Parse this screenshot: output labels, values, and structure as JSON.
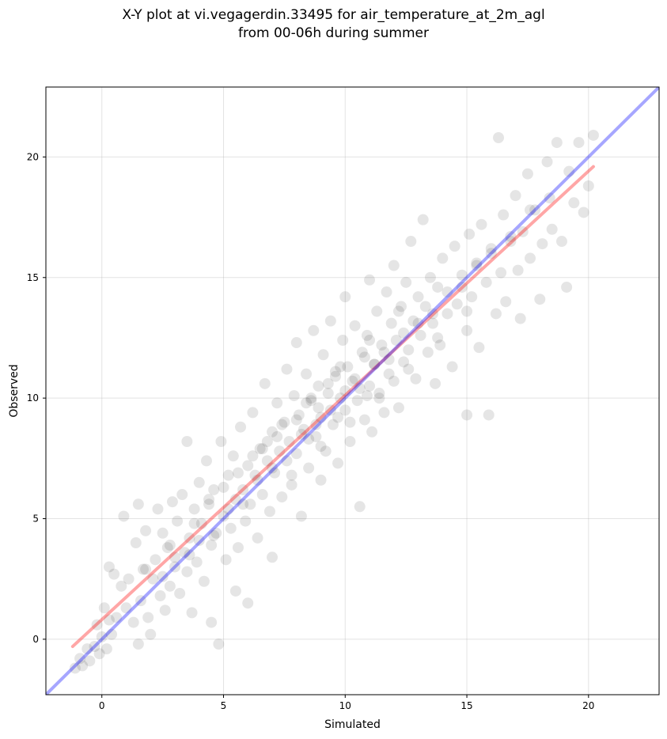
{
  "chart_data": {
    "type": "scatter",
    "title_line1": "X-Y plot at vi.vegagerdin.33495 for air_temperature_at_2m_agl",
    "title_line2": "from 00-06h during summer",
    "xlabel": "Simulated",
    "ylabel": "Observed",
    "xlim": [
      -2.3,
      22.9
    ],
    "ylim": [
      -2.3,
      22.9
    ],
    "xticks": [
      0,
      5,
      10,
      15,
      20
    ],
    "yticks": [
      0,
      5,
      10,
      15,
      20
    ],
    "grid": true,
    "point_color": "#000000",
    "point_alpha": 0.1,
    "identity_line": {
      "color": "#0000ff",
      "from": [
        -2.3,
        -2.3
      ],
      "to": [
        22.9,
        22.9
      ]
    },
    "regression_line": {
      "color": "#ff0000",
      "from": [
        -1.2,
        -0.3
      ],
      "to": [
        20.2,
        19.6
      ]
    },
    "points": [
      [
        -1.1,
        -1.2
      ],
      [
        -0.9,
        -0.8
      ],
      [
        -0.8,
        -1.1
      ],
      [
        -0.6,
        -0.4
      ],
      [
        -0.5,
        -0.9
      ],
      [
        -0.3,
        -0.3
      ],
      [
        -0.2,
        0.6
      ],
      [
        -0.1,
        -0.6
      ],
      [
        0.0,
        0.1
      ],
      [
        0.1,
        1.3
      ],
      [
        0.2,
        -0.4
      ],
      [
        0.3,
        0.8
      ],
      [
        0.3,
        3.0
      ],
      [
        0.4,
        0.2
      ],
      [
        0.5,
        2.7
      ],
      [
        0.6,
        0.9
      ],
      [
        0.8,
        2.2
      ],
      [
        0.9,
        5.1
      ],
      [
        1.0,
        1.3
      ],
      [
        1.1,
        2.5
      ],
      [
        1.3,
        0.7
      ],
      [
        1.4,
        4.0
      ],
      [
        1.5,
        5.6
      ],
      [
        1.5,
        -0.2
      ],
      [
        1.6,
        1.6
      ],
      [
        1.7,
        2.9
      ],
      [
        1.8,
        4.5
      ],
      [
        1.9,
        0.9
      ],
      [
        2.0,
        0.2
      ],
      [
        2.1,
        2.5
      ],
      [
        2.2,
        3.3
      ],
      [
        2.3,
        5.4
      ],
      [
        2.4,
        1.8
      ],
      [
        2.5,
        4.4
      ],
      [
        2.6,
        1.2
      ],
      [
        2.7,
        3.8
      ],
      [
        2.8,
        2.2
      ],
      [
        2.9,
        5.7
      ],
      [
        3.0,
        3.0
      ],
      [
        3.1,
        4.9
      ],
      [
        3.2,
        1.9
      ],
      [
        3.3,
        6.0
      ],
      [
        3.4,
        3.6
      ],
      [
        3.5,
        2.8
      ],
      [
        3.5,
        8.2
      ],
      [
        3.6,
        4.2
      ],
      [
        3.7,
        1.1
      ],
      [
        3.8,
        5.4
      ],
      [
        3.9,
        3.2
      ],
      [
        4.0,
        6.5
      ],
      [
        4.1,
        4.8
      ],
      [
        4.2,
        2.4
      ],
      [
        4.3,
        7.4
      ],
      [
        4.4,
        5.6
      ],
      [
        4.5,
        3.9
      ],
      [
        4.5,
        0.7
      ],
      [
        4.6,
        6.2
      ],
      [
        4.7,
        4.4
      ],
      [
        4.8,
        -0.2
      ],
      [
        4.9,
        8.2
      ],
      [
        5.0,
        5.1
      ],
      [
        5.1,
        3.3
      ],
      [
        5.2,
        6.8
      ],
      [
        5.3,
        4.6
      ],
      [
        5.4,
        7.6
      ],
      [
        5.5,
        5.8
      ],
      [
        5.5,
        2.0
      ],
      [
        5.6,
        3.8
      ],
      [
        5.7,
        8.8
      ],
      [
        5.8,
        6.2
      ],
      [
        5.9,
        4.9
      ],
      [
        6.0,
        7.2
      ],
      [
        6.0,
        1.5
      ],
      [
        6.1,
        5.6
      ],
      [
        6.2,
        9.4
      ],
      [
        6.3,
        6.8
      ],
      [
        6.4,
        4.2
      ],
      [
        6.5,
        7.9
      ],
      [
        6.6,
        6.0
      ],
      [
        6.7,
        10.6
      ],
      [
        6.8,
        7.4
      ],
      [
        6.9,
        5.3
      ],
      [
        7.0,
        8.6
      ],
      [
        7.0,
        3.4
      ],
      [
        7.1,
        6.9
      ],
      [
        7.2,
        9.8
      ],
      [
        7.3,
        7.8
      ],
      [
        7.4,
        5.9
      ],
      [
        7.5,
        9.0
      ],
      [
        7.6,
        11.2
      ],
      [
        7.7,
        8.2
      ],
      [
        7.8,
        6.4
      ],
      [
        7.9,
        10.1
      ],
      [
        8.0,
        7.7
      ],
      [
        8.0,
        12.3
      ],
      [
        8.1,
        9.3
      ],
      [
        8.2,
        5.1
      ],
      [
        8.3,
        8.7
      ],
      [
        8.4,
        11.0
      ],
      [
        8.5,
        7.1
      ],
      [
        8.6,
        9.9
      ],
      [
        8.7,
        12.8
      ],
      [
        8.8,
        8.4
      ],
      [
        8.9,
        10.5
      ],
      [
        9.0,
        6.6
      ],
      [
        9.0,
        9.2
      ],
      [
        9.1,
        11.8
      ],
      [
        9.2,
        7.8
      ],
      [
        9.3,
        10.2
      ],
      [
        9.4,
        13.2
      ],
      [
        9.5,
        8.9
      ],
      [
        9.6,
        11.1
      ],
      [
        9.7,
        7.3
      ],
      [
        9.8,
        10.0
      ],
      [
        9.9,
        12.4
      ],
      [
        10.0,
        9.5
      ],
      [
        10.0,
        14.2
      ],
      [
        10.1,
        11.3
      ],
      [
        10.2,
        8.2
      ],
      [
        10.3,
        10.7
      ],
      [
        10.4,
        13.0
      ],
      [
        10.5,
        9.9
      ],
      [
        10.6,
        5.5
      ],
      [
        10.7,
        11.9
      ],
      [
        10.8,
        9.1
      ],
      [
        10.9,
        12.6
      ],
      [
        11.0,
        10.5
      ],
      [
        11.0,
        14.9
      ],
      [
        11.1,
        8.6
      ],
      [
        11.2,
        11.4
      ],
      [
        11.3,
        13.6
      ],
      [
        11.4,
        10.0
      ],
      [
        11.5,
        12.2
      ],
      [
        11.6,
        9.4
      ],
      [
        11.7,
        14.4
      ],
      [
        11.8,
        11.0
      ],
      [
        11.9,
        13.1
      ],
      [
        12.0,
        10.7
      ],
      [
        12.0,
        15.5
      ],
      [
        12.1,
        12.4
      ],
      [
        12.2,
        9.6
      ],
      [
        12.3,
        13.8
      ],
      [
        12.4,
        11.5
      ],
      [
        12.5,
        14.8
      ],
      [
        12.6,
        12.0
      ],
      [
        12.7,
        16.5
      ],
      [
        12.8,
        13.2
      ],
      [
        12.9,
        10.8
      ],
      [
        13.0,
        14.2
      ],
      [
        13.1,
        12.6
      ],
      [
        13.2,
        17.4
      ],
      [
        13.3,
        13.8
      ],
      [
        13.4,
        11.9
      ],
      [
        13.5,
        15.0
      ],
      [
        13.6,
        13.1
      ],
      [
        13.7,
        10.6
      ],
      [
        13.8,
        14.6
      ],
      [
        13.9,
        12.2
      ],
      [
        14.0,
        15.8
      ],
      [
        14.2,
        13.5
      ],
      [
        14.4,
        11.3
      ],
      [
        14.5,
        16.3
      ],
      [
        14.6,
        13.9
      ],
      [
        14.8,
        15.1
      ],
      [
        15.0,
        12.8
      ],
      [
        15.0,
        9.3
      ],
      [
        15.1,
        16.8
      ],
      [
        15.2,
        14.2
      ],
      [
        15.4,
        15.6
      ],
      [
        15.5,
        12.1
      ],
      [
        15.6,
        17.2
      ],
      [
        15.8,
        14.8
      ],
      [
        15.9,
        9.3
      ],
      [
        16.0,
        16.0
      ],
      [
        16.2,
        13.5
      ],
      [
        16.3,
        20.8
      ],
      [
        16.4,
        15.2
      ],
      [
        16.5,
        17.6
      ],
      [
        16.6,
        14.0
      ],
      [
        16.8,
        16.5
      ],
      [
        17.0,
        18.4
      ],
      [
        17.1,
        15.3
      ],
      [
        17.2,
        13.3
      ],
      [
        17.3,
        16.9
      ],
      [
        17.5,
        19.3
      ],
      [
        17.6,
        15.8
      ],
      [
        17.8,
        17.8
      ],
      [
        18.0,
        14.1
      ],
      [
        18.1,
        16.4
      ],
      [
        18.3,
        19.8
      ],
      [
        18.5,
        17.0
      ],
      [
        18.7,
        20.6
      ],
      [
        18.9,
        16.5
      ],
      [
        19.1,
        14.6
      ],
      [
        19.2,
        19.4
      ],
      [
        19.4,
        18.1
      ],
      [
        19.6,
        20.6
      ],
      [
        19.8,
        17.7
      ],
      [
        20.0,
        18.8
      ],
      [
        20.2,
        20.9
      ],
      [
        2.5,
        2.6
      ],
      [
        3.0,
        3.4
      ],
      [
        3.6,
        3.5
      ],
      [
        4.0,
        4.1
      ],
      [
        4.6,
        4.3
      ],
      [
        5.2,
        5.4
      ],
      [
        5.8,
        5.6
      ],
      [
        6.4,
        6.6
      ],
      [
        7.0,
        7.1
      ],
      [
        7.6,
        7.4
      ],
      [
        8.2,
        8.5
      ],
      [
        8.8,
        8.9
      ],
      [
        9.4,
        9.5
      ],
      [
        10.0,
        10.3
      ],
      [
        10.6,
        10.4
      ],
      [
        11.2,
        11.4
      ],
      [
        11.8,
        11.6
      ],
      [
        12.4,
        12.7
      ],
      [
        13.0,
        13.1
      ],
      [
        13.6,
        13.5
      ],
      [
        14.2,
        14.4
      ],
      [
        14.8,
        14.6
      ],
      [
        15.4,
        15.5
      ],
      [
        16.0,
        16.2
      ],
      [
        16.8,
        16.7
      ],
      [
        17.6,
        17.8
      ],
      [
        18.4,
        18.3
      ],
      [
        6.2,
        7.6
      ],
      [
        7.4,
        8.9
      ],
      [
        8.6,
        10.0
      ],
      [
        9.8,
        11.3
      ],
      [
        11.0,
        12.4
      ],
      [
        12.2,
        13.6
      ],
      [
        5.0,
        6.3
      ],
      [
        3.8,
        4.8
      ],
      [
        2.8,
        3.9
      ],
      [
        1.8,
        2.9
      ],
      [
        7.8,
        6.8
      ],
      [
        9.0,
        8.0
      ],
      [
        10.2,
        9.0
      ],
      [
        11.4,
        10.2
      ],
      [
        12.6,
        11.2
      ],
      [
        13.8,
        12.5
      ],
      [
        15.0,
        13.6
      ],
      [
        8.4,
        9.8
      ],
      [
        9.6,
        10.9
      ],
      [
        10.8,
        11.7
      ],
      [
        6.8,
        8.2
      ],
      [
        5.6,
        6.9
      ],
      [
        4.4,
        5.8
      ],
      [
        8.0,
        9.1
      ],
      [
        8.9,
        9.6
      ],
      [
        9.3,
        10.6
      ],
      [
        10.4,
        10.8
      ],
      [
        11.6,
        11.9
      ],
      [
        7.2,
        8.4
      ],
      [
        6.6,
        7.9
      ],
      [
        8.5,
        8.3
      ],
      [
        9.7,
        9.2
      ],
      [
        10.9,
        10.1
      ]
    ]
  }
}
